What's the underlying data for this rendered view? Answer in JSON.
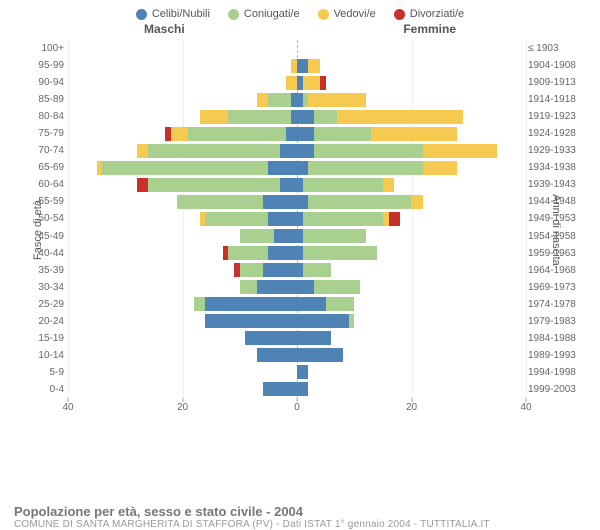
{
  "chart": {
    "type": "population-pyramid",
    "title": "Popolazione per età, sesso e stato civile - 2004",
    "subtitle": "COMUNE DI SANTA MARGHERITA DI STAFFORA (PV) - Dati ISTAT 1° gennaio 2004 - TUTTITALIA.IT",
    "legend": [
      {
        "label": "Celibi/Nubili",
        "color": "#4f83b6"
      },
      {
        "label": "Coniugati/e",
        "color": "#a9d08f"
      },
      {
        "label": "Vedovi/e",
        "color": "#f6c951"
      },
      {
        "label": "Divorziati/e",
        "color": "#c9302c"
      }
    ],
    "gender_labels": {
      "left": "Maschi",
      "right": "Femmine"
    },
    "y_axis_left_label": "Fasce di età",
    "y_axis_right_label": "Anni di nascita",
    "x_axis": {
      "max": 40,
      "ticks": [
        40,
        20,
        0,
        20,
        40
      ],
      "tick_positions_pct": [
        0,
        25,
        50,
        75,
        100
      ]
    },
    "colors": {
      "celibi": "#4f83b6",
      "coniugati": "#a9d08f",
      "vedovi": "#f6c951",
      "divorziati": "#c9302c",
      "grid": "#eeeeee",
      "center_line": "#bbbbbb",
      "text": "#666666",
      "background": "#ffffff"
    },
    "bar_gap_ratio": 0.18,
    "age_groups": [
      {
        "age": "100+",
        "birth": "≤ 1903",
        "m": {
          "c": 0,
          "co": 0,
          "v": 0,
          "d": 0
        },
        "f": {
          "c": 0,
          "co": 0,
          "v": 0,
          "d": 0
        }
      },
      {
        "age": "95-99",
        "birth": "1904-1908",
        "m": {
          "c": 0,
          "co": 0,
          "v": 1,
          "d": 0
        },
        "f": {
          "c": 2,
          "co": 0,
          "v": 2,
          "d": 0
        }
      },
      {
        "age": "90-94",
        "birth": "1909-1913",
        "m": {
          "c": 0,
          "co": 0,
          "v": 2,
          "d": 0
        },
        "f": {
          "c": 1,
          "co": 0,
          "v": 3,
          "d": 1
        }
      },
      {
        "age": "85-89",
        "birth": "1914-1918",
        "m": {
          "c": 1,
          "co": 4,
          "v": 2,
          "d": 0
        },
        "f": {
          "c": 1,
          "co": 1,
          "v": 10,
          "d": 0
        }
      },
      {
        "age": "80-84",
        "birth": "1919-1923",
        "m": {
          "c": 1,
          "co": 11,
          "v": 5,
          "d": 0
        },
        "f": {
          "c": 3,
          "co": 4,
          "v": 22,
          "d": 0
        }
      },
      {
        "age": "75-79",
        "birth": "1924-1928",
        "m": {
          "c": 2,
          "co": 17,
          "v": 3,
          "d": 1
        },
        "f": {
          "c": 3,
          "co": 10,
          "v": 15,
          "d": 0
        }
      },
      {
        "age": "70-74",
        "birth": "1929-1933",
        "m": {
          "c": 3,
          "co": 23,
          "v": 2,
          "d": 0
        },
        "f": {
          "c": 3,
          "co": 19,
          "v": 13,
          "d": 0
        }
      },
      {
        "age": "65-69",
        "birth": "1934-1938",
        "m": {
          "c": 5,
          "co": 29,
          "v": 1,
          "d": 0
        },
        "f": {
          "c": 2,
          "co": 20,
          "v": 6,
          "d": 0
        }
      },
      {
        "age": "60-64",
        "birth": "1939-1943",
        "m": {
          "c": 3,
          "co": 23,
          "v": 0,
          "d": 2
        },
        "f": {
          "c": 1,
          "co": 14,
          "v": 2,
          "d": 0
        }
      },
      {
        "age": "55-59",
        "birth": "1944-1948",
        "m": {
          "c": 6,
          "co": 15,
          "v": 0,
          "d": 0
        },
        "f": {
          "c": 2,
          "co": 18,
          "v": 2,
          "d": 0
        }
      },
      {
        "age": "50-54",
        "birth": "1949-1953",
        "m": {
          "c": 5,
          "co": 11,
          "v": 1,
          "d": 0
        },
        "f": {
          "c": 1,
          "co": 14,
          "v": 1,
          "d": 2
        }
      },
      {
        "age": "45-49",
        "birth": "1954-1958",
        "m": {
          "c": 4,
          "co": 6,
          "v": 0,
          "d": 0
        },
        "f": {
          "c": 1,
          "co": 11,
          "v": 0,
          "d": 0
        }
      },
      {
        "age": "40-44",
        "birth": "1959-1963",
        "m": {
          "c": 5,
          "co": 7,
          "v": 0,
          "d": 1
        },
        "f": {
          "c": 1,
          "co": 13,
          "v": 0,
          "d": 0
        }
      },
      {
        "age": "35-39",
        "birth": "1964-1968",
        "m": {
          "c": 6,
          "co": 4,
          "v": 0,
          "d": 1
        },
        "f": {
          "c": 1,
          "co": 5,
          "v": 0,
          "d": 0
        }
      },
      {
        "age": "30-34",
        "birth": "1969-1973",
        "m": {
          "c": 7,
          "co": 3,
          "v": 0,
          "d": 0
        },
        "f": {
          "c": 3,
          "co": 8,
          "v": 0,
          "d": 0
        }
      },
      {
        "age": "25-29",
        "birth": "1974-1978",
        "m": {
          "c": 16,
          "co": 2,
          "v": 0,
          "d": 0
        },
        "f": {
          "c": 5,
          "co": 5,
          "v": 0,
          "d": 0
        }
      },
      {
        "age": "20-24",
        "birth": "1979-1983",
        "m": {
          "c": 16,
          "co": 0,
          "v": 0,
          "d": 0
        },
        "f": {
          "c": 9,
          "co": 1,
          "v": 0,
          "d": 0
        }
      },
      {
        "age": "15-19",
        "birth": "1984-1988",
        "m": {
          "c": 9,
          "co": 0,
          "v": 0,
          "d": 0
        },
        "f": {
          "c": 6,
          "co": 0,
          "v": 0,
          "d": 0
        }
      },
      {
        "age": "10-14",
        "birth": "1989-1993",
        "m": {
          "c": 7,
          "co": 0,
          "v": 0,
          "d": 0
        },
        "f": {
          "c": 8,
          "co": 0,
          "v": 0,
          "d": 0
        }
      },
      {
        "age": "5-9",
        "birth": "1994-1998",
        "m": {
          "c": 0,
          "co": 0,
          "v": 0,
          "d": 0
        },
        "f": {
          "c": 2,
          "co": 0,
          "v": 0,
          "d": 0
        }
      },
      {
        "age": "0-4",
        "birth": "1999-2003",
        "m": {
          "c": 6,
          "co": 0,
          "v": 0,
          "d": 0
        },
        "f": {
          "c": 2,
          "co": 0,
          "v": 0,
          "d": 0
        }
      }
    ]
  }
}
